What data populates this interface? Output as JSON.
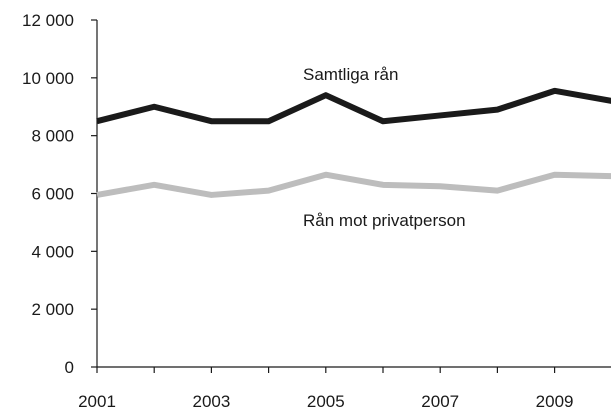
{
  "chart_data": {
    "type": "line",
    "x": [
      2001,
      2002,
      2003,
      2004,
      2005,
      2006,
      2007,
      2008,
      2009,
      2010
    ],
    "x_tick_labels": [
      "2001",
      "2003",
      "2005",
      "2007",
      "2009"
    ],
    "y_tick_labels": [
      "0",
      "2 000",
      "4 000",
      "6 000",
      "8 000",
      "10 000",
      "12 000"
    ],
    "ylim": [
      0,
      12000
    ],
    "grid": false,
    "legend": "inline labels",
    "series": [
      {
        "name": "Samtliga rån",
        "values": [
          8500,
          9000,
          8500,
          8500,
          9400,
          8500,
          8700,
          8900,
          9550,
          9200
        ],
        "color": "#1a1a1a"
      },
      {
        "name": "Rån mot privatperson",
        "values": [
          5950,
          6300,
          5950,
          6100,
          6650,
          6300,
          6250,
          6100,
          6650,
          6600
        ],
        "color": "#bdbdbd"
      }
    ]
  }
}
